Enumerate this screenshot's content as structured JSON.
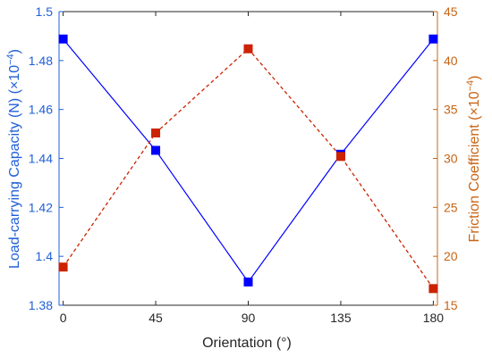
{
  "chart_data": {
    "type": "line",
    "x": [
      0,
      45,
      90,
      135,
      180
    ],
    "xlabel": "Orientation (°)",
    "xlim": [
      -2,
      182
    ],
    "xticks": [
      "0",
      "45",
      "90",
      "135",
      "180"
    ],
    "ylabel_left": {
      "text": "Load-carrying Capacity (N) (×10",
      "exp": "−4",
      "close": ")"
    },
    "ylabel_right": {
      "text": "Friction Coefficient (×10",
      "exp": "−4",
      "close": ")"
    },
    "ylim_left": [
      1.38,
      1.5
    ],
    "yticks_left": [
      "1.38",
      "1.4",
      "1.42",
      "1.44",
      "1.46",
      "1.48",
      "1.5"
    ],
    "ylim_right": [
      15,
      45
    ],
    "yticks_right": [
      "15",
      "20",
      "25",
      "30",
      "35",
      "40",
      "45"
    ],
    "grid": false,
    "series": [
      {
        "axis": "left",
        "values": [
          1.4888,
          1.4433,
          1.3895,
          1.4417,
          1.4888
        ],
        "color": "#0000ff",
        "line_style": "solid",
        "marker": "square"
      },
      {
        "axis": "right",
        "values": [
          18.9,
          32.6,
          41.2,
          30.2,
          16.7
        ],
        "color": "#cc2200",
        "line_style": "dashed",
        "marker": "square"
      }
    ],
    "colors": {
      "left_axis": "#1f5fd6",
      "right_axis": "#c86414",
      "axis_frame": "#262626"
    }
  }
}
